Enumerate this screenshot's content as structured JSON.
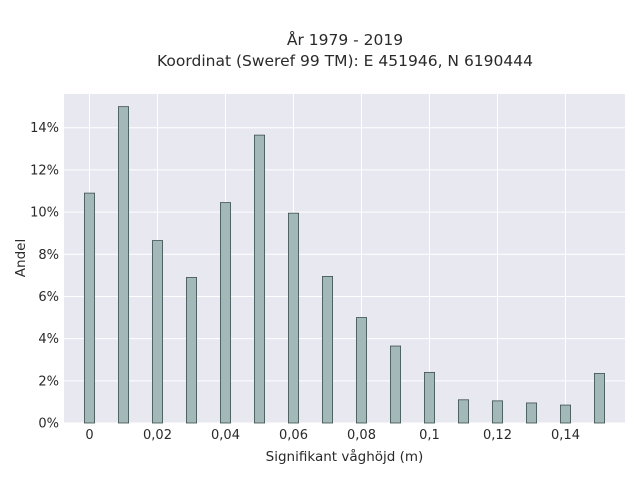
{
  "chart_data": {
    "type": "bar",
    "title_lines": [
      "År 1979 - 2019",
      "Koordinat (Sweref 99 TM): E 451946, N 6190444"
    ],
    "xlabel": "Signifikant våghöjd (m)",
    "ylabel": "Andel",
    "x": [
      0,
      0.01,
      0.02,
      0.03,
      0.04,
      0.05,
      0.06,
      0.07,
      0.08,
      0.09,
      0.1,
      0.11,
      0.12,
      0.13,
      0.14,
      0.15
    ],
    "values": [
      10.9,
      15.0,
      8.65,
      6.9,
      10.45,
      13.65,
      9.95,
      6.95,
      5.0,
      3.65,
      2.4,
      1.1,
      1.05,
      0.95,
      0.85,
      2.35
    ],
    "bar_width": 0.003,
    "xlim": [
      -0.0075,
      0.1575
    ],
    "ylim": [
      0,
      15.6
    ],
    "x_ticks": [
      0,
      0.02,
      0.04,
      0.06,
      0.08,
      0.1,
      0.12,
      0.14
    ],
    "x_tick_labels": [
      "0",
      "0,02",
      "0,04",
      "0,06",
      "0,08",
      "0,1",
      "0,12",
      "0,14"
    ],
    "y_ticks": [
      0,
      2,
      4,
      6,
      8,
      10,
      12,
      14
    ],
    "y_tick_labels": [
      "0%",
      "2%",
      "4%",
      "6%",
      "8%",
      "10%",
      "12%",
      "14%"
    ],
    "grid": true,
    "legend": "none",
    "colors": {
      "bar_fill": "#a3b8b8",
      "bar_stroke": "#3d4f4f",
      "plot_bg": "#e8e8f1",
      "grid": "#ffffff"
    }
  }
}
